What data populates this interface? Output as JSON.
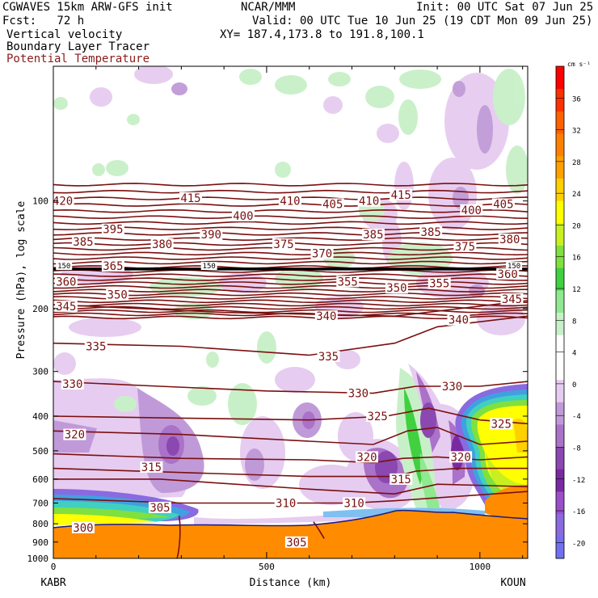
{
  "header": {
    "line1_left": "CGWAVES 15km ARW-GFS init",
    "line1_center": "NCAR/MMM",
    "line1_right": "Init: 00 UTC Sat 07 Jun 25",
    "fcst": "Fcst:   72 h",
    "valid": "Valid: 00 UTC Tue 10 Jun 25 (19 CDT Mon 09 Jun 25)",
    "field1": "Vertical velocity",
    "field2": "Boundary Layer Tracer",
    "field3": "Potential Temperature",
    "xy": "XY= 187.4,173.8 to 191.8,100.1"
  },
  "colors": {
    "field3": "#8b1a1a",
    "theta_contour": "#7a0f0f",
    "terrain": "#ff8c00"
  },
  "chart_data": {
    "type": "heatmap",
    "title": "",
    "xlabel": "Distance (km)",
    "ylabel": "Pressure (hPa), log scale",
    "x_range": [
      0,
      1112
    ],
    "y_range": [
      1000,
      42
    ],
    "y_scale": "log",
    "x_ticks": [
      "0",
      "500",
      "1000"
    ],
    "x_tick_values": [
      0,
      500,
      1000
    ],
    "y_ticks": [
      "100",
      "200",
      "300",
      "400",
      "500",
      "600",
      "700",
      "800",
      "900",
      "1000"
    ],
    "y_tick_values": [
      100,
      200,
      300,
      400,
      500,
      600,
      700,
      800,
      900,
      1000
    ],
    "x_endpoint_labels": {
      "left": "KABR",
      "right": "KOUN"
    },
    "colorbar": {
      "unit": "cm s⁻¹",
      "range": [
        -22,
        40
      ],
      "ticks": [
        -20,
        -16,
        -12,
        -8,
        -4,
        0,
        4,
        8,
        12,
        16,
        20,
        24,
        28,
        32,
        36
      ],
      "colors": [
        "#7070f0",
        "#8a6ae0",
        "#9a4fc8",
        "#7a2aa0",
        "#8a48b0",
        "#aa72c8",
        "#c09ad8",
        "#e6ccf0",
        "#ffffff",
        "#ffffff",
        "#c8f0c8",
        "#90e890",
        "#40d040",
        "#80e040",
        "#c8f020",
        "#ffff00",
        "#ffd000",
        "#ffa000",
        "#ff8000",
        "#ff6000",
        "#ff3000",
        "#ff0000"
      ]
    },
    "theta_labels": [
      {
        "v": "420",
        "x": 22,
        "p": 100
      },
      {
        "v": "415",
        "x": 322,
        "p": 98
      },
      {
        "v": "410",
        "x": 555,
        "p": 100
      },
      {
        "v": "405",
        "x": 655,
        "p": 102
      },
      {
        "v": "410",
        "x": 740,
        "p": 100
      },
      {
        "v": "415",
        "x": 815,
        "p": 96
      },
      {
        "v": "400",
        "x": 445,
        "p": 110
      },
      {
        "v": "400",
        "x": 980,
        "p": 106
      },
      {
        "v": "405",
        "x": 1055,
        "p": 102
      },
      {
        "v": "395",
        "x": 140,
        "p": 120
      },
      {
        "v": "390",
        "x": 370,
        "p": 124
      },
      {
        "v": "385",
        "x": 70,
        "p": 130
      },
      {
        "v": "380",
        "x": 255,
        "p": 132
      },
      {
        "v": "375",
        "x": 540,
        "p": 132
      },
      {
        "v": "370",
        "x": 630,
        "p": 140
      },
      {
        "v": "385",
        "x": 750,
        "p": 124
      },
      {
        "v": "385",
        "x": 885,
        "p": 122
      },
      {
        "v": "375",
        "x": 965,
        "p": 134
      },
      {
        "v": "380",
        "x": 1070,
        "p": 128
      },
      {
        "v": "365",
        "x": 140,
        "p": 152
      },
      {
        "v": "360",
        "x": 30,
        "p": 168
      },
      {
        "v": "360",
        "x": 1065,
        "p": 160
      },
      {
        "v": "350",
        "x": 150,
        "p": 183
      },
      {
        "v": "355",
        "x": 690,
        "p": 168
      },
      {
        "v": "350",
        "x": 805,
        "p": 175
      },
      {
        "v": "355",
        "x": 905,
        "p": 170
      },
      {
        "v": "345",
        "x": 30,
        "p": 197
      },
      {
        "v": "345",
        "x": 1075,
        "p": 188
      },
      {
        "v": "340",
        "x": 640,
        "p": 210
      },
      {
        "v": "340",
        "x": 950,
        "p": 215
      },
      {
        "v": "335",
        "x": 100,
        "p": 255
      },
      {
        "v": "335",
        "x": 645,
        "p": 272
      },
      {
        "v": "330",
        "x": 45,
        "p": 325
      },
      {
        "v": "330",
        "x": 715,
        "p": 345
      },
      {
        "v": "330",
        "x": 935,
        "p": 330
      },
      {
        "v": "325",
        "x": 760,
        "p": 400
      },
      {
        "v": "325",
        "x": 1050,
        "p": 420
      },
      {
        "v": "320",
        "x": 50,
        "p": 450
      },
      {
        "v": "320",
        "x": 735,
        "p": 520
      },
      {
        "v": "320",
        "x": 955,
        "p": 520
      },
      {
        "v": "315",
        "x": 230,
        "p": 555
      },
      {
        "v": "315",
        "x": 815,
        "p": 600
      },
      {
        "v": "310",
        "x": 545,
        "p": 700
      },
      {
        "v": "310",
        "x": 705,
        "p": 700
      },
      {
        "v": "305",
        "x": 250,
        "p": 720
      },
      {
        "v": "305",
        "x": 570,
        "p": 900
      },
      {
        "v": "300",
        "x": 70,
        "p": 820
      },
      {
        "v": "150",
        "x": 25,
        "p": 152
      },
      {
        "v": "150",
        "x": 365,
        "p": 152
      },
      {
        "v": "150",
        "x": 1080,
        "p": 152
      }
    ]
  }
}
